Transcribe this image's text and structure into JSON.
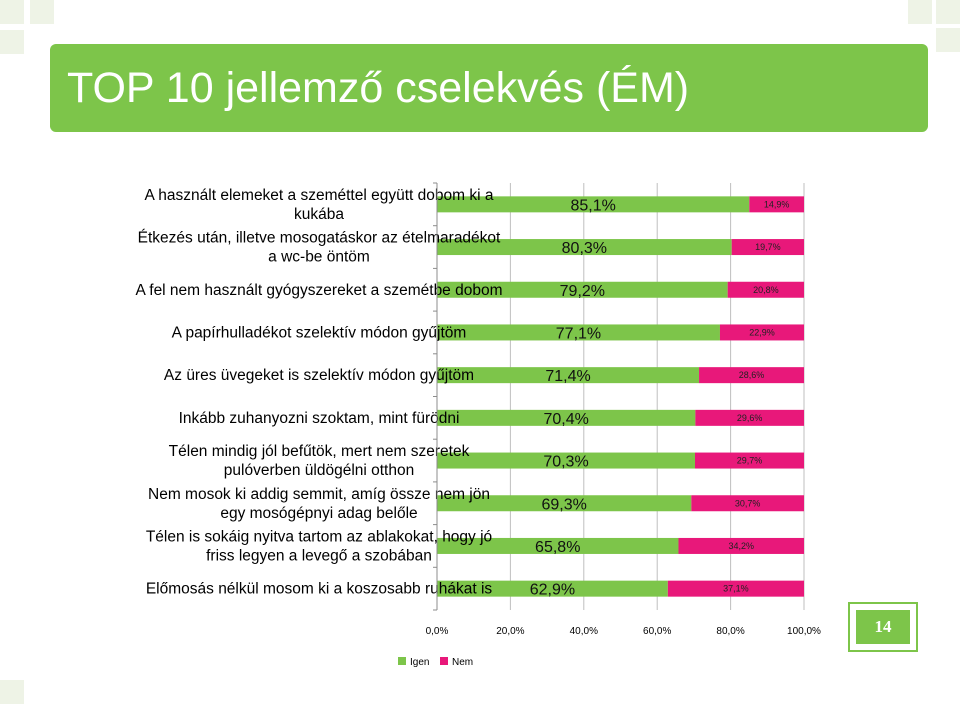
{
  "title": "TOP 10 jellemző cselekvés (ÉM)",
  "page_number": "14",
  "colors": {
    "title_bg": "#7dc54a",
    "yes": "#7dc54a",
    "no": "#e8187a"
  },
  "chart_data": {
    "type": "bar",
    "orientation": "horizontal",
    "stacked": true,
    "categories": [
      [
        "A használt elemeket a szeméttel együtt dobom ki a",
        "kukába"
      ],
      [
        "Étkezés után, illetve mosogatáskor az ételmaradékot",
        "a wc-be öntöm"
      ],
      [
        "A fel nem használt gyógyszereket a szemétbe dobom"
      ],
      [
        "A papírhulladékot szelektív módon gyűjtöm"
      ],
      [
        "Az üres üvegeket is szelektív módon gyűjtöm"
      ],
      [
        "Inkább zuhanyozni szoktam, mint fürödni"
      ],
      [
        "Télen mindig jól befűtök, mert nem szeretek",
        "pulóverben üldögélni otthon"
      ],
      [
        "Nem mosok ki addig semmit, amíg össze nem jön",
        "egy mosógépnyi adag belőle"
      ],
      [
        "Télen is sokáig nyitva tartom az ablakokat, hogy jó",
        "friss legyen a levegő a szobában"
      ],
      [
        "Előmosás nélkül mosom ki a koszosabb ruhákat is"
      ]
    ],
    "series": [
      {
        "name": "Igen",
        "values": [
          85.1,
          80.3,
          79.2,
          77.1,
          71.4,
          70.4,
          70.3,
          69.3,
          65.8,
          62.9
        ],
        "labels": [
          "85,1%",
          "80,3%",
          "79,2%",
          "77,1%",
          "71,4%",
          "70,4%",
          "70,3%",
          "69,3%",
          "65,8%",
          "62,9%"
        ]
      },
      {
        "name": "Nem",
        "values": [
          14.9,
          19.7,
          20.8,
          22.9,
          28.6,
          29.6,
          29.7,
          30.7,
          34.2,
          37.1
        ],
        "labels": [
          "14,9%",
          "19,7%",
          "20,8%",
          "22,9%",
          "28,6%",
          "29,6%",
          "29,7%",
          "30,7%",
          "34,2%",
          "37,1%"
        ]
      }
    ],
    "x_ticks": [
      "0,0%",
      "20,0%",
      "40,0%",
      "60,0%",
      "80,0%",
      "100,0%"
    ],
    "xlim": [
      0,
      100
    ],
    "grid": true,
    "legend_position": "bottom"
  }
}
